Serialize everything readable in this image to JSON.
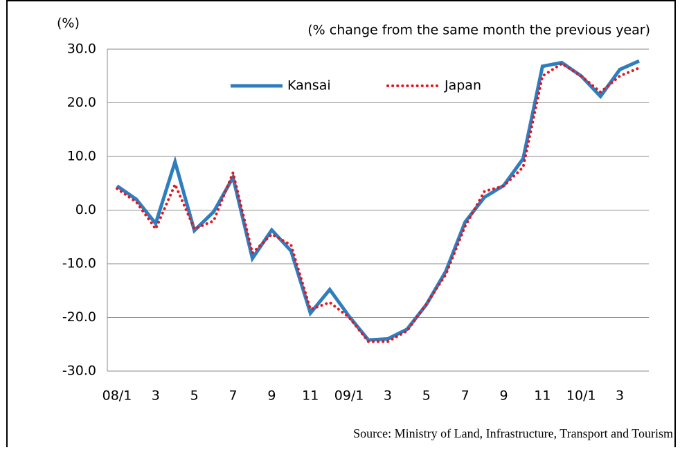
{
  "chart_data": {
    "type": "line",
    "unit_label": "(%)",
    "subtitle": "(% change from the same month the previous year)",
    "source": "Source: Ministry of Land, Infrastructure, Transport and Tourism",
    "categories": [
      "08/1",
      null,
      "3",
      null,
      "5",
      null,
      "7",
      null,
      "9",
      null,
      "11",
      null,
      "09/1",
      null,
      "3",
      null,
      "5",
      null,
      "7",
      null,
      "9",
      null,
      "11",
      null,
      "10/1",
      null,
      "3",
      null
    ],
    "series": [
      {
        "name": "Kansai",
        "color": "#2e7ebf",
        "style": "solid",
        "values": [
          4.5,
          2.0,
          -2.5,
          9.0,
          -3.8,
          -0.3,
          6.1,
          -9.0,
          -3.7,
          -7.6,
          -19.2,
          -14.8,
          -19.8,
          -24.2,
          -24.0,
          -22.2,
          -17.6,
          -11.4,
          -2.2,
          2.4,
          4.6,
          9.6,
          26.8,
          27.5,
          25.0,
          21.2,
          26.2,
          27.8
        ]
      },
      {
        "name": "Japan",
        "color": "#e8141c",
        "style": "dotted",
        "values": [
          4.0,
          1.5,
          -3.5,
          4.8,
          -3.5,
          -2.0,
          7.0,
          -8.0,
          -4.5,
          -6.5,
          -18.5,
          -17.2,
          -20.0,
          -24.5,
          -24.5,
          -22.5,
          -17.5,
          -12.0,
          -3.0,
          3.5,
          4.5,
          8.0,
          25.0,
          27.3,
          25.0,
          22.0,
          25.0,
          26.5
        ]
      }
    ],
    "ylim": [
      -30,
      30
    ],
    "yticks": [
      {
        "value": -30,
        "label": "-30.0"
      },
      {
        "value": -20,
        "label": "-20.0"
      },
      {
        "value": -10,
        "label": "-10.0"
      },
      {
        "value": 0,
        "label": "0.0"
      },
      {
        "value": 10,
        "label": "10.0"
      },
      {
        "value": 20,
        "label": "20.0"
      },
      {
        "value": 30,
        "label": "30.0"
      }
    ],
    "grid": true
  }
}
